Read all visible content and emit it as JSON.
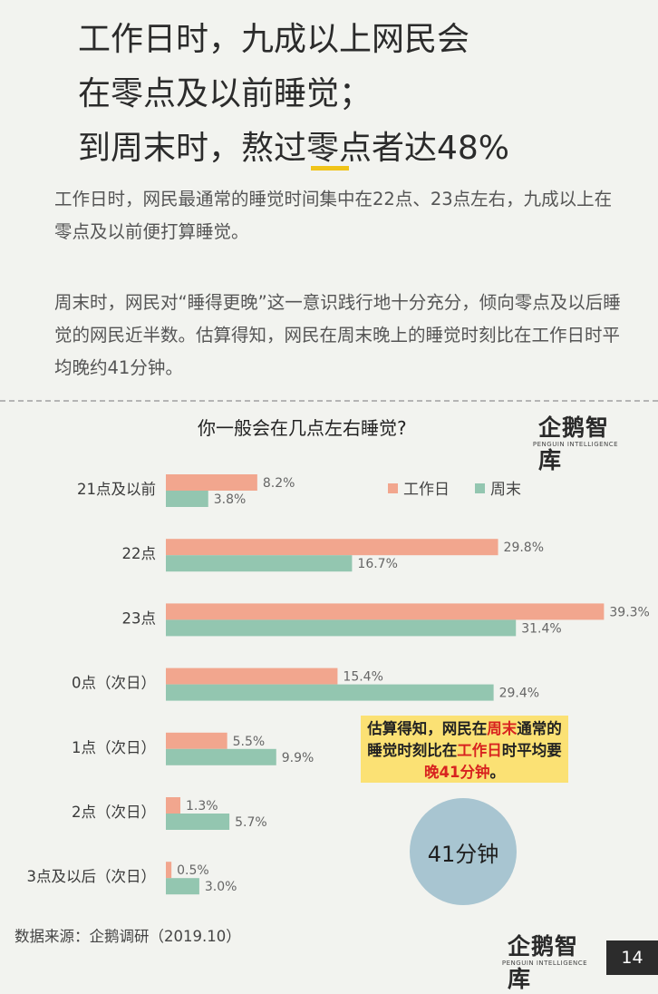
{
  "headline": {
    "lines": [
      "工作日时，九成以上网民会",
      "在零点及以前睡觉；",
      "到周末时，熬过零点者达48%"
    ]
  },
  "intro": {
    "para1": "工作日时，网民最通常的睡觉时间集中在22点、23点左右，九成以上在零点及以前便打算睡觉。",
    "para2": "周末时，网民对“睡得更晚”这一意识践行地十分充分，倾向零点及以后睡觉的网民近半数。估算得知，网民在周末晚上的睡觉时刻比在工作日时平均晚约41分钟。"
  },
  "brand": {
    "name": "企鹅智库",
    "sub": "PENGUIN INTELLIGENCE"
  },
  "callout": {
    "part1": "估算得知，网民在",
    "hl1": "周末",
    "part2": "通常的睡觉时刻比在",
    "hl2": "工作日",
    "part3": "时平均要",
    "hl3": "晚41分钟",
    "part4": "。"
  },
  "circle_text": "41分钟",
  "source": "数据来源：企鹅调研（2019.10）",
  "page_number": "14",
  "colors": {
    "workday": "#f2a68e",
    "weekend": "#93c6b0",
    "callout_bg": "#fbe174",
    "highlight_red": "#d8231f"
  },
  "chart_data": {
    "type": "bar",
    "orientation": "horizontal",
    "title": "你一般会在几点左右睡觉?",
    "categories": [
      "21点及以前",
      "22点",
      "23点",
      "0点（次日）",
      "1点（次日）",
      "2点（次日）",
      "3点及以后（次日）"
    ],
    "series": [
      {
        "name": "工作日",
        "color": "#f2a68e",
        "values": [
          8.2,
          29.8,
          39.3,
          15.4,
          5.5,
          1.3,
          0.5
        ]
      },
      {
        "name": "周末",
        "color": "#93c6b0",
        "values": [
          3.8,
          16.7,
          31.4,
          29.4,
          9.9,
          5.7,
          3.0
        ]
      }
    ],
    "value_suffix": "%",
    "xlim": [
      0,
      40
    ],
    "legend_position": "top-right",
    "grid": false
  }
}
